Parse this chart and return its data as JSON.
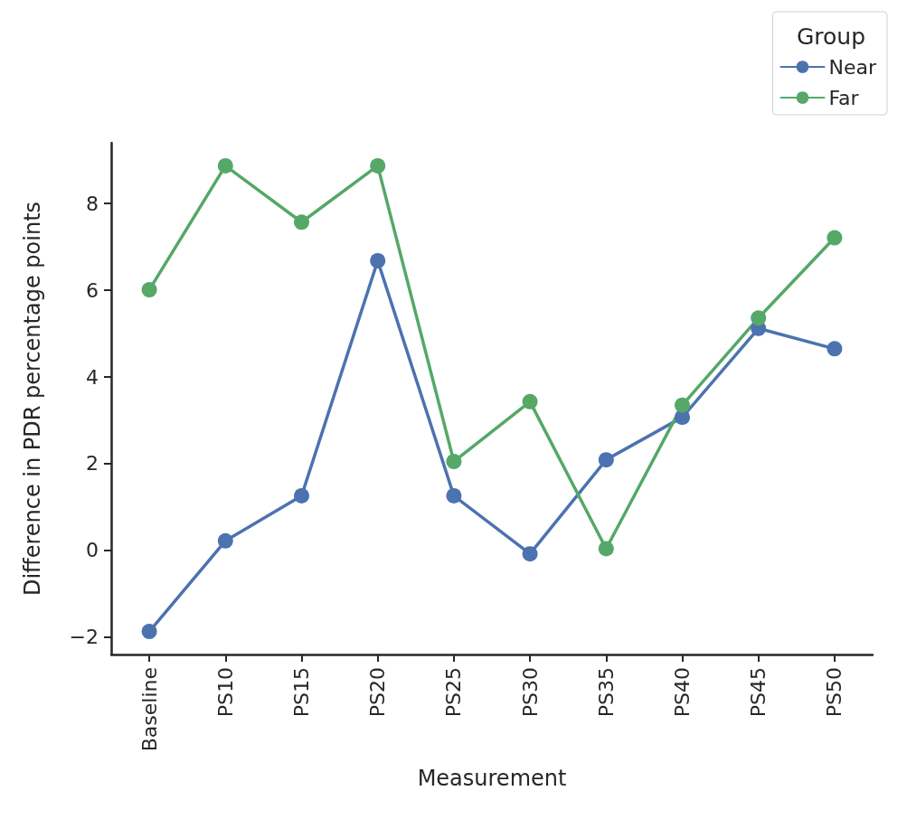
{
  "chart_data": {
    "type": "line",
    "xlabel": "Measurement",
    "ylabel": "Difference in PDR percentage points",
    "legend_title": "Group",
    "legend": "top right",
    "categories": [
      "Baseline",
      "PS10",
      "PS15",
      "PS20",
      "PS25",
      "PS30",
      "PS35",
      "PS40",
      "PS45",
      "PS50"
    ],
    "series": [
      {
        "name": "Near",
        "color": "#4c72b0",
        "values": [
          -1.87,
          0.22,
          1.26,
          6.68,
          1.26,
          -0.08,
          2.09,
          3.07,
          5.12,
          4.65
        ]
      },
      {
        "name": "Far",
        "color": "#55a868",
        "values": [
          6.01,
          8.87,
          7.57,
          8.87,
          2.05,
          3.43,
          0.04,
          3.35,
          5.36,
          7.21
        ]
      }
    ],
    "ylim": [
      -2.4,
      9.4
    ],
    "yticks": [
      -2,
      0,
      2,
      4,
      6,
      8
    ],
    "grid": false,
    "marker": "circle",
    "line_style": "solid"
  }
}
